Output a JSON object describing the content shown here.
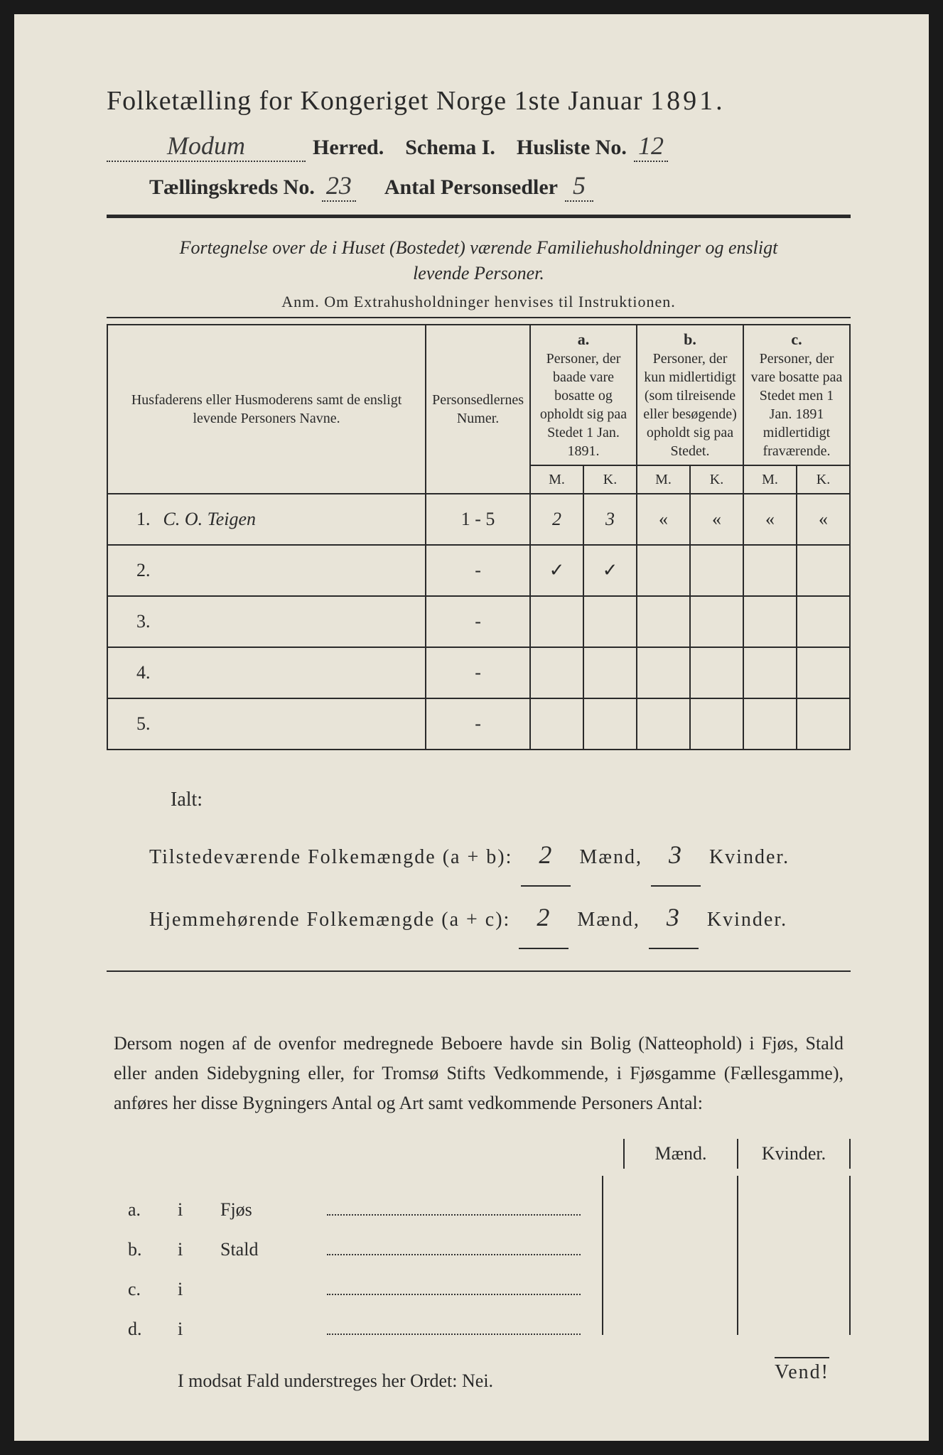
{
  "header": {
    "title_prefix": "Folketælling for Kongeriget Norge 1ste Januar",
    "year": "1891.",
    "herred_value": "Modum",
    "herred_label": "Herred.",
    "schema_label": "Schema I.",
    "husliste_label": "Husliste No.",
    "husliste_value": "12",
    "kreds_label": "Tællingskreds No.",
    "kreds_value": "23",
    "antal_label": "Antal Personsedler",
    "antal_value": "5"
  },
  "description": {
    "line1": "Fortegnelse over de i Huset (Bostedet) værende Familiehusholdninger og ensligt",
    "line2": "levende Personer.",
    "anm": "Anm. Om Extrahusholdninger henvises til Instruktionen."
  },
  "table": {
    "col_names": "Husfaderens eller Husmoderens samt de ensligt levende Personers Navne.",
    "col_numer": "Personsedlernes Numer.",
    "col_a_letter": "a.",
    "col_a": "Personer, der baade vare bosatte og opholdt sig paa Stedet 1 Jan. 1891.",
    "col_b_letter": "b.",
    "col_b": "Personer, der kun midlertidigt (som tilreisende eller besøgende) opholdt sig paa Stedet.",
    "col_c_letter": "c.",
    "col_c": "Personer, der vare bosatte paa Stedet men 1 Jan. 1891 midlertidigt fraværende.",
    "m": "M.",
    "k": "K.",
    "rows": [
      {
        "num": "1.",
        "name": "C. O. Teigen",
        "pers": "1 - 5",
        "am": "2",
        "ak": "3",
        "bm": "«",
        "bk": "«",
        "cm": "«",
        "ck": "«"
      },
      {
        "num": "2.",
        "name": "",
        "pers": "-",
        "am": "✓",
        "ak": "✓",
        "bm": "",
        "bk": "",
        "cm": "",
        "ck": ""
      },
      {
        "num": "3.",
        "name": "",
        "pers": "-",
        "am": "",
        "ak": "",
        "bm": "",
        "bk": "",
        "cm": "",
        "ck": ""
      },
      {
        "num": "4.",
        "name": "",
        "pers": "-",
        "am": "",
        "ak": "",
        "bm": "",
        "bk": "",
        "cm": "",
        "ck": ""
      },
      {
        "num": "5.",
        "name": "",
        "pers": "-",
        "am": "",
        "ak": "",
        "bm": "",
        "bk": "",
        "cm": "",
        "ck": ""
      }
    ]
  },
  "totals": {
    "ialt": "Ialt:",
    "line1_label": "Tilstedeværende Folkemængde (a + b):",
    "line2_label": "Hjemmehørende Folkemængde (a + c):",
    "maend": "Mænd,",
    "kvinder": "Kvinder.",
    "t_m": "2",
    "t_k": "3",
    "h_m": "2",
    "h_k": "3"
  },
  "paragraph": "Dersom nogen af de ovenfor medregnede Beboere havde sin Bolig (Natteophold) i Fjøs, Stald eller anden Sidebygning eller, for Tromsø Stifts Vedkommende, i Fjøsgamme (Fællesgamme), anføres her disse Bygningers Antal og Art samt vedkommende Personers Antal:",
  "side": {
    "maend": "Mænd.",
    "kvinder": "Kvinder.",
    "rows": [
      {
        "l": "a.",
        "i": "i",
        "cat": "Fjøs"
      },
      {
        "l": "b.",
        "i": "i",
        "cat": "Stald"
      },
      {
        "l": "c.",
        "i": "i",
        "cat": ""
      },
      {
        "l": "d.",
        "i": "i",
        "cat": ""
      }
    ]
  },
  "nei_line": "I modsat Fald understreges her Ordet: Nei.",
  "vend": "Vend!",
  "colors": {
    "paper": "#e8e4d8",
    "ink": "#2a2a2a",
    "bg": "#1a1a1a"
  }
}
